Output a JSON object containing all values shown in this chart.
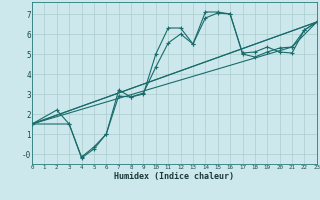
{
  "xlabel": "Humidex (Indice chaleur)",
  "bg_color": "#cce8ec",
  "grid_color": "#aacccc",
  "line_color": "#1a6b6b",
  "xlim": [
    0,
    23
  ],
  "ylim": [
    -0.5,
    7.6
  ],
  "xticks": [
    0,
    1,
    2,
    3,
    4,
    5,
    6,
    7,
    8,
    9,
    10,
    11,
    12,
    13,
    14,
    15,
    16,
    17,
    18,
    19,
    20,
    21,
    22,
    23
  ],
  "yticks": [
    0,
    1,
    2,
    3,
    4,
    5,
    6,
    7
  ],
  "ytick_labels": [
    "-0",
    "1",
    "2",
    "3",
    "4",
    "5",
    "6",
    "7"
  ],
  "series1_x": [
    0,
    2,
    3,
    4,
    5,
    6,
    7,
    8,
    9,
    10,
    11,
    12,
    13,
    14,
    15,
    16,
    17,
    18,
    19,
    20,
    21,
    22,
    23
  ],
  "series1_y": [
    1.5,
    2.2,
    1.5,
    -0.15,
    0.35,
    1.0,
    3.2,
    2.85,
    3.0,
    5.0,
    6.3,
    6.3,
    5.5,
    7.1,
    7.1,
    7.0,
    5.05,
    5.1,
    5.35,
    5.1,
    5.05,
    6.2,
    6.6
  ],
  "series2_x": [
    0,
    3,
    4,
    5,
    6,
    7,
    8,
    9,
    10,
    11,
    12,
    13,
    14,
    15,
    16,
    17,
    18,
    19,
    20,
    21,
    22,
    23
  ],
  "series2_y": [
    1.5,
    1.5,
    -0.2,
    0.25,
    1.0,
    2.9,
    2.85,
    3.05,
    4.35,
    5.55,
    6.0,
    5.5,
    6.8,
    7.05,
    7.0,
    5.0,
    4.85,
    5.1,
    5.3,
    5.35,
    6.2,
    6.6
  ],
  "line3_x": [
    0,
    23
  ],
  "line3_y": [
    1.5,
    6.6
  ],
  "line4_x": [
    0,
    23
  ],
  "line4_y": [
    1.5,
    6.6
  ],
  "line5_x": [
    0,
    21,
    23
  ],
  "line5_y": [
    1.5,
    5.35,
    6.6
  ]
}
